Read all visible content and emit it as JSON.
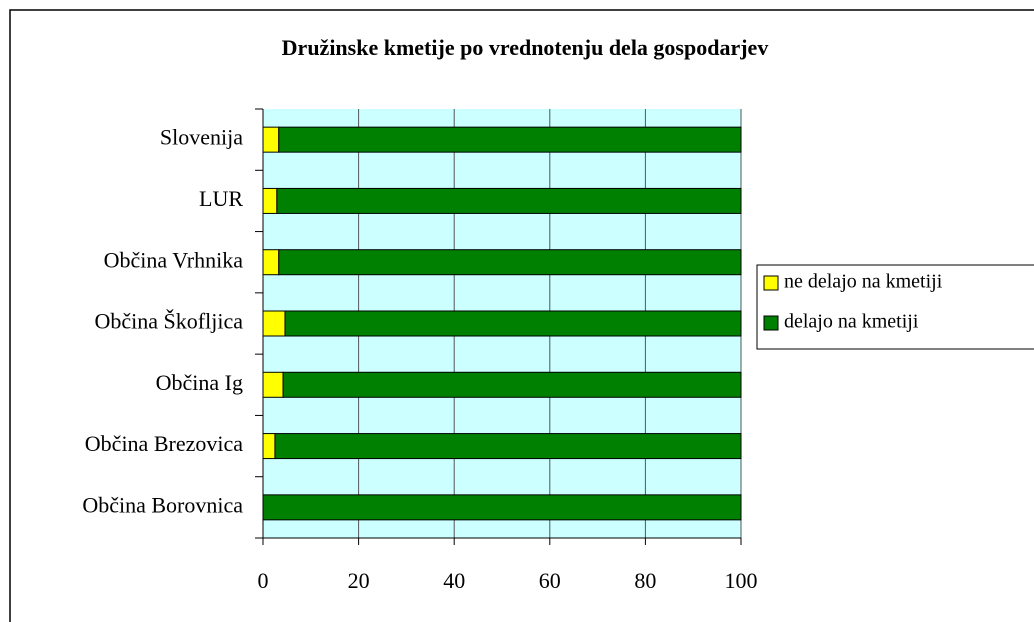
{
  "chart_data": {
    "type": "stacked_barh",
    "title": "Družinske kmetije po vrednotenju dela gospodarjev",
    "categories": [
      "Slovenija",
      "LUR",
      "Občina Vrhnika",
      "Občina Škofljica",
      "Občina Ig",
      "Občina Brezovica",
      "Občina Borovnica"
    ],
    "series": [
      {
        "name": "ne delajo na kmetiji",
        "color": "#ffff00",
        "values": [
          3.3,
          2.9,
          3.3,
          4.6,
          4.2,
          2.5,
          0
        ]
      },
      {
        "name": "delajo na kmetiji",
        "color": "#008000",
        "values": [
          96.7,
          97.1,
          96.7,
          95.4,
          95.8,
          97.5,
          100
        ]
      }
    ],
    "xlim": [
      0,
      100
    ],
    "xticks": [
      0,
      20,
      40,
      60,
      80,
      100
    ],
    "grid": true,
    "legend": "right"
  }
}
